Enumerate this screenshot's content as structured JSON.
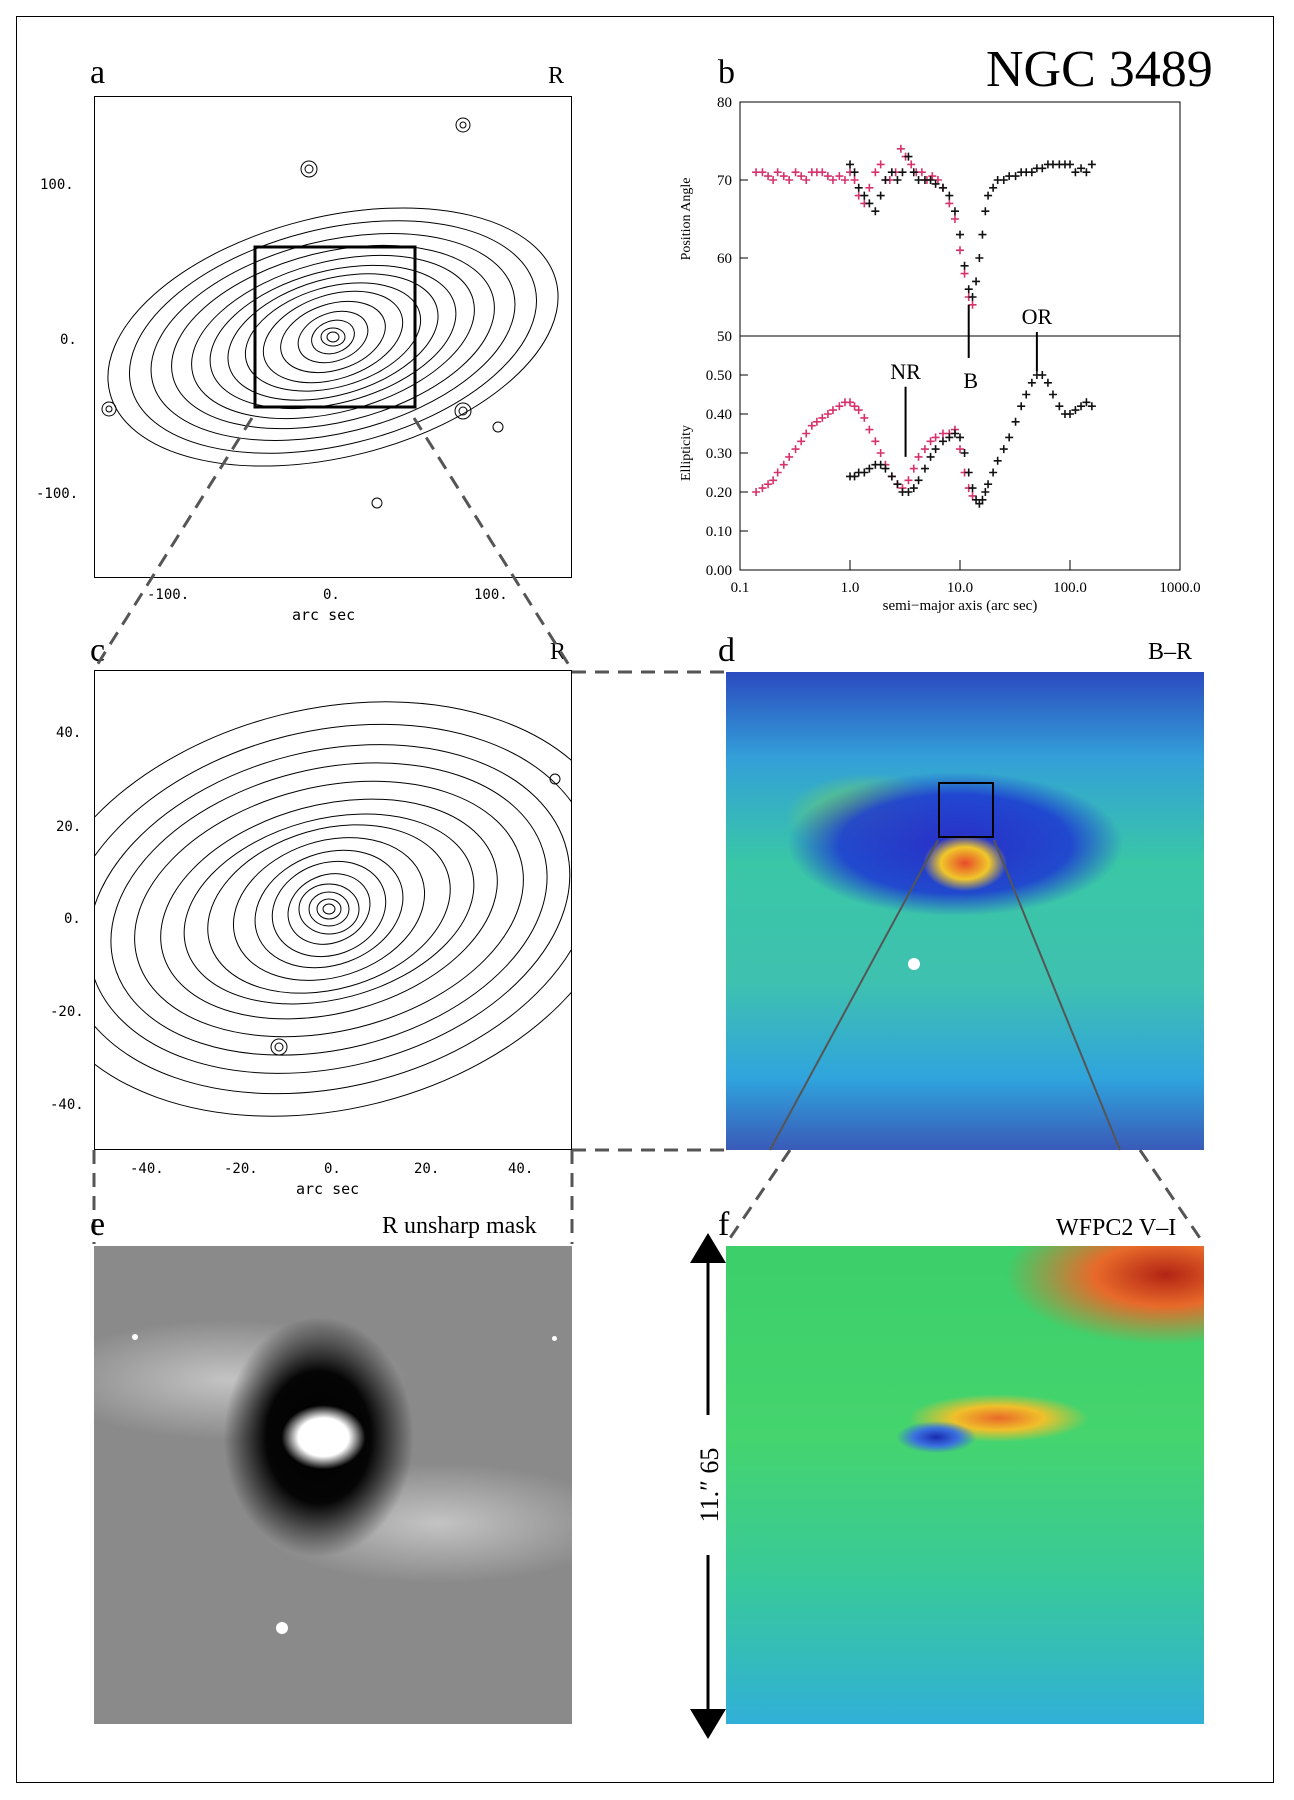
{
  "figure": {
    "title": "NGC 3489",
    "panels": {
      "a": {
        "letter": "a",
        "band": "R",
        "xticks": [
          "-100.",
          "0.",
          "100."
        ],
        "yticks": [
          "100.",
          "0.",
          "-100."
        ],
        "xlabel": "arc sec"
      },
      "b": {
        "letter": "b"
      },
      "c": {
        "letter": "c",
        "band": "R",
        "xticks": [
          "-40.",
          "-20.",
          "0.",
          "20.",
          "40."
        ],
        "yticks": [
          "40.",
          "20.",
          "0.",
          "-20.",
          "-40."
        ],
        "xlabel": "arc sec"
      },
      "d": {
        "letter": "d",
        "band": "B–R"
      },
      "e": {
        "letter": "e",
        "band": "R unsharp mask"
      },
      "f": {
        "letter": "f",
        "band": "WFPC2 V–I",
        "scale_label": "11.″ 65"
      }
    }
  },
  "chart_data": [
    {
      "type": "scatter",
      "panel": "b-top",
      "ylabel": "Position Angle",
      "ylim": [
        50,
        80
      ],
      "xlog": true,
      "xlim": [
        0.1,
        1000.0
      ],
      "yticks": [
        "80",
        "70",
        "60",
        "50"
      ],
      "series": [
        {
          "color": "#d6336c",
          "x": [
            0.14,
            0.16,
            0.18,
            0.2,
            0.22,
            0.25,
            0.28,
            0.32,
            0.36,
            0.4,
            0.45,
            0.5,
            0.56,
            0.63,
            0.7,
            0.8,
            0.9,
            1.0,
            1.1,
            1.2,
            1.35,
            1.5,
            1.7,
            1.9,
            2.1,
            2.3,
            2.6,
            2.9,
            3.2,
            3.6,
            4.0,
            4.5,
            5.0,
            5.6,
            6.3,
            7.0,
            8.0,
            9.0,
            10.0,
            11.0,
            12.0,
            13.0
          ],
          "y": [
            71,
            71,
            70.5,
            70,
            71,
            70.5,
            70,
            71,
            70.5,
            70,
            71,
            71,
            71,
            70.5,
            70,
            70.5,
            70,
            71,
            70,
            68,
            67,
            69,
            71,
            72,
            70,
            70,
            71,
            74,
            73,
            72,
            71,
            71,
            70,
            70.5,
            70,
            69,
            67,
            65,
            61,
            58,
            55,
            54
          ]
        },
        {
          "color": "#111111",
          "x": [
            1.0,
            1.1,
            1.2,
            1.35,
            1.5,
            1.7,
            1.9,
            2.1,
            2.4,
            2.7,
            3.0,
            3.4,
            3.8,
            4.2,
            4.8,
            5.4,
            6.0,
            7.0,
            8.0,
            9.0,
            10.0,
            11.0,
            12.0,
            13.0,
            14.0,
            15.0,
            16.0,
            17.0,
            18.0,
            20.0,
            22.0,
            25.0,
            28.0,
            32.0,
            36.0,
            40.0,
            45.0,
            50.0,
            56.0,
            63.0,
            70.0,
            80.0,
            90.0,
            100.0,
            112.0,
            126.0,
            141.0,
            158.0
          ],
          "y": [
            72,
            71,
            69,
            68,
            67,
            66,
            68,
            70,
            71,
            70,
            71,
            73,
            71,
            70,
            70,
            70,
            69.5,
            69,
            68,
            66,
            63,
            59,
            56,
            55,
            57,
            60,
            63,
            66,
            68,
            69,
            70,
            70,
            70.5,
            70.5,
            71,
            71,
            71,
            71.5,
            71.5,
            72,
            72,
            72,
            72,
            72,
            71,
            71.5,
            71,
            72
          ]
        }
      ]
    },
    {
      "type": "scatter",
      "panel": "b-bottom",
      "xlabel": "semi−major axis (arc sec)",
      "ylabel": "Ellipticity",
      "ylim": [
        0.0,
        0.6
      ],
      "xlog": true,
      "xlim": [
        0.1,
        1000.0
      ],
      "xticks": [
        "0.1",
        "1.0",
        "10.0",
        "100.0",
        "1000.0"
      ],
      "yticks": [
        "0.50",
        "0.40",
        "0.30",
        "0.20",
        "0.10",
        "0.00"
      ],
      "annotations": [
        "NR",
        "B",
        "OR"
      ],
      "series": [
        {
          "color": "#d6336c",
          "x": [
            0.14,
            0.16,
            0.18,
            0.2,
            0.22,
            0.25,
            0.28,
            0.32,
            0.36,
            0.4,
            0.45,
            0.5,
            0.56,
            0.63,
            0.7,
            0.8,
            0.9,
            1.0,
            1.1,
            1.2,
            1.35,
            1.5,
            1.7,
            1.9,
            2.1,
            2.4,
            2.7,
            3.0,
            3.4,
            3.8,
            4.2,
            4.8,
            5.4,
            6.0,
            7.0,
            8.0,
            9.0,
            10.0,
            11.0,
            12.0,
            13.0
          ],
          "y": [
            0.2,
            0.21,
            0.22,
            0.23,
            0.25,
            0.27,
            0.29,
            0.31,
            0.33,
            0.35,
            0.37,
            0.38,
            0.39,
            0.4,
            0.41,
            0.42,
            0.43,
            0.43,
            0.42,
            0.41,
            0.39,
            0.36,
            0.33,
            0.3,
            0.27,
            0.24,
            0.22,
            0.21,
            0.23,
            0.26,
            0.29,
            0.31,
            0.33,
            0.34,
            0.35,
            0.35,
            0.36,
            0.31,
            0.25,
            0.21,
            0.19
          ]
        },
        {
          "color": "#111111",
          "x": [
            1.0,
            1.1,
            1.2,
            1.35,
            1.5,
            1.7,
            1.9,
            2.1,
            2.4,
            2.7,
            3.0,
            3.4,
            3.8,
            4.2,
            4.8,
            5.4,
            6.0,
            7.0,
            8.0,
            9.0,
            10.0,
            11.0,
            12.0,
            13.0,
            14.0,
            15.0,
            16.0,
            17.0,
            18.0,
            20.0,
            22.0,
            25.0,
            28.0,
            32.0,
            36.0,
            40.0,
            45.0,
            50.0,
            56.0,
            63.0,
            70.0,
            80.0,
            90.0,
            100.0,
            112.0,
            126.0,
            141.0,
            158.0
          ],
          "y": [
            0.24,
            0.24,
            0.25,
            0.25,
            0.26,
            0.27,
            0.27,
            0.26,
            0.24,
            0.22,
            0.2,
            0.2,
            0.21,
            0.23,
            0.26,
            0.29,
            0.31,
            0.33,
            0.34,
            0.35,
            0.34,
            0.3,
            0.25,
            0.21,
            0.18,
            0.17,
            0.18,
            0.2,
            0.22,
            0.25,
            0.28,
            0.31,
            0.34,
            0.38,
            0.42,
            0.45,
            0.48,
            0.5,
            0.5,
            0.48,
            0.45,
            0.42,
            0.4,
            0.4,
            0.41,
            0.42,
            0.43,
            0.42
          ]
        }
      ]
    }
  ]
}
